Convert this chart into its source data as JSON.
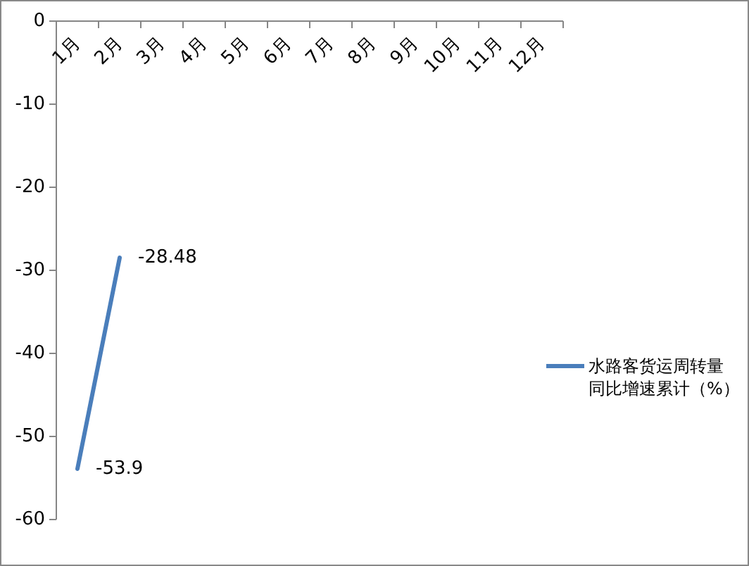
{
  "chart_data": {
    "type": "line",
    "categories": [
      "1月",
      "2月",
      "3月",
      "4月",
      "5月",
      "6月",
      "7月",
      "8月",
      "9月",
      "10月",
      "11月",
      "12月"
    ],
    "series": [
      {
        "name": "水路客货运周转量同比增速累计（%）",
        "color": "#4a7ebb",
        "values": [
          -53.9,
          -28.48,
          null,
          null,
          null,
          null,
          null,
          null,
          null,
          null,
          null,
          null
        ]
      }
    ],
    "ylim": [
      -60,
      0
    ],
    "yticks": [
      -60,
      -50,
      -40,
      -30,
      -20,
      -10,
      0
    ],
    "data_labels": true,
    "legend": "right"
  }
}
